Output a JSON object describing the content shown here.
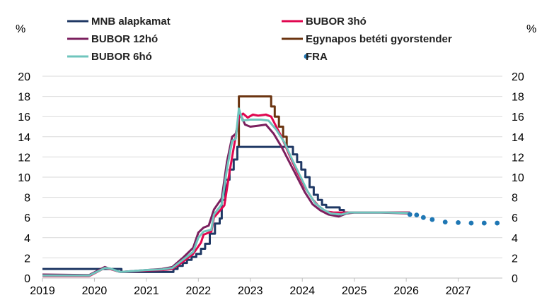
{
  "chart_data": {
    "type": "line",
    "title": "",
    "y_unit_left": "%",
    "y_unit_right": "%",
    "ylim": [
      0,
      20
    ],
    "y_ticks": [
      "0",
      "2",
      "4",
      "6",
      "8",
      "10",
      "12",
      "14",
      "16",
      "18",
      "20"
    ],
    "xlim": [
      2019,
      2027.85
    ],
    "x_ticks": [
      "2019",
      "2020",
      "2021",
      "2022",
      "2023",
      "2024",
      "2025",
      "2026",
      "2027"
    ],
    "grid": "horizontal",
    "legend": [
      {
        "name": "MNB alapkamat",
        "color": "#1f3864",
        "style": "line"
      },
      {
        "name": "BUBOR 3hó",
        "color": "#e0064f",
        "style": "line"
      },
      {
        "name": "BUBOR 12hó",
        "color": "#7b1f5e",
        "style": "line"
      },
      {
        "name": "Egynapos betéti gyorstender",
        "color": "#6b3410",
        "style": "line"
      },
      {
        "name": "BUBOR 6hó",
        "color": "#6fc5bd",
        "style": "line"
      },
      {
        "name": "FRA",
        "color": "#1f77b4",
        "style": "dots"
      }
    ],
    "series": [
      {
        "name": "MNB alapkamat",
        "color": "#1f3864",
        "width": 3,
        "step": true,
        "points": [
          [
            2019,
            0.9
          ],
          [
            2020.5,
            0.9
          ],
          [
            2020.52,
            0.6
          ],
          [
            2021.5,
            0.6
          ],
          [
            2021.52,
            0.9
          ],
          [
            2021.6,
            1.2
          ],
          [
            2021.7,
            1.5
          ],
          [
            2021.78,
            1.8
          ],
          [
            2021.87,
            2.1
          ],
          [
            2021.96,
            2.4
          ],
          [
            2022.05,
            2.9
          ],
          [
            2022.13,
            3.4
          ],
          [
            2022.22,
            4.4
          ],
          [
            2022.32,
            5.4
          ],
          [
            2022.41,
            5.9
          ],
          [
            2022.45,
            7.75
          ],
          [
            2022.52,
            9.75
          ],
          [
            2022.6,
            10.75
          ],
          [
            2022.68,
            11.75
          ],
          [
            2022.75,
            13
          ],
          [
            2023.75,
            13
          ],
          [
            2023.82,
            12.25
          ],
          [
            2023.9,
            11.5
          ],
          [
            2023.98,
            10.75
          ],
          [
            2024.06,
            10.0
          ],
          [
            2024.14,
            9.0
          ],
          [
            2024.22,
            8.25
          ],
          [
            2024.3,
            7.75
          ],
          [
            2024.38,
            7.25
          ],
          [
            2024.46,
            7.0
          ],
          [
            2024.72,
            6.75
          ],
          [
            2024.8,
            6.5
          ],
          [
            2026.07,
            6.5
          ]
        ]
      },
      {
        "name": "Egynapos betéti gyorstender",
        "color": "#6b3410",
        "width": 3,
        "step": true,
        "points": [
          [
            2022.75,
            13
          ],
          [
            2022.78,
            18
          ],
          [
            2023.37,
            18
          ],
          [
            2023.4,
            17
          ],
          [
            2023.47,
            16
          ],
          [
            2023.55,
            15
          ],
          [
            2023.63,
            14
          ],
          [
            2023.7,
            13
          ]
        ]
      },
      {
        "name": "BUBOR 3hó",
        "color": "#e0064f",
        "width": 3,
        "step": false,
        "points": [
          [
            2019,
            0.2
          ],
          [
            2019.9,
            0.2
          ],
          [
            2020.2,
            1.0
          ],
          [
            2020.3,
            0.9
          ],
          [
            2020.5,
            0.6
          ],
          [
            2021.0,
            0.75
          ],
          [
            2021.3,
            0.8
          ],
          [
            2021.5,
            0.9
          ],
          [
            2021.7,
            1.6
          ],
          [
            2021.9,
            2.4
          ],
          [
            2022.05,
            3.5
          ],
          [
            2022.1,
            4.3
          ],
          [
            2022.25,
            4.6
          ],
          [
            2022.3,
            6.0
          ],
          [
            2022.5,
            7.2
          ],
          [
            2022.6,
            10.5
          ],
          [
            2022.7,
            13.5
          ],
          [
            2022.78,
            15.9
          ],
          [
            2022.86,
            16.3
          ],
          [
            2022.95,
            15.9
          ],
          [
            2023.05,
            16.2
          ],
          [
            2023.15,
            16.1
          ],
          [
            2023.3,
            16.2
          ],
          [
            2023.4,
            16.0
          ],
          [
            2023.5,
            15.0
          ],
          [
            2023.6,
            14.0
          ],
          [
            2023.75,
            12.2
          ],
          [
            2023.9,
            10.5
          ],
          [
            2024.05,
            9.0
          ],
          [
            2024.2,
            7.8
          ],
          [
            2024.3,
            7.2
          ],
          [
            2024.45,
            6.6
          ],
          [
            2024.6,
            6.5
          ],
          [
            2024.8,
            6.5
          ],
          [
            2025.0,
            6.5
          ],
          [
            2025.5,
            6.5
          ],
          [
            2026.07,
            6.5
          ]
        ]
      },
      {
        "name": "BUBOR 12hó",
        "color": "#7b1f5e",
        "width": 3,
        "step": false,
        "points": [
          [
            2019,
            0.35
          ],
          [
            2019.9,
            0.3
          ],
          [
            2020.2,
            1.1
          ],
          [
            2020.3,
            0.9
          ],
          [
            2020.5,
            0.6
          ],
          [
            2021.0,
            0.8
          ],
          [
            2021.3,
            0.9
          ],
          [
            2021.5,
            1.1
          ],
          [
            2021.7,
            2.0
          ],
          [
            2021.9,
            3.0
          ],
          [
            2022.0,
            4.5
          ],
          [
            2022.1,
            5.0
          ],
          [
            2022.2,
            5.2
          ],
          [
            2022.3,
            6.8
          ],
          [
            2022.45,
            7.9
          ],
          [
            2022.55,
            11.5
          ],
          [
            2022.65,
            14.0
          ],
          [
            2022.72,
            14.3
          ],
          [
            2022.8,
            16.3
          ],
          [
            2022.9,
            15.2
          ],
          [
            2023.0,
            15.0
          ],
          [
            2023.15,
            15.1
          ],
          [
            2023.3,
            15.2
          ],
          [
            2023.45,
            14.3
          ],
          [
            2023.6,
            13.0
          ],
          [
            2023.75,
            11.5
          ],
          [
            2023.9,
            10.0
          ],
          [
            2024.05,
            8.5
          ],
          [
            2024.2,
            7.3
          ],
          [
            2024.35,
            6.7
          ],
          [
            2024.5,
            6.3
          ],
          [
            2024.7,
            6.1
          ],
          [
            2024.85,
            6.4
          ],
          [
            2025.0,
            6.5
          ],
          [
            2025.5,
            6.5
          ],
          [
            2026.07,
            6.4
          ]
        ]
      },
      {
        "name": "BUBOR 6hó",
        "color": "#6fc5bd",
        "width": 3,
        "step": false,
        "points": [
          [
            2019,
            0.25
          ],
          [
            2019.9,
            0.25
          ],
          [
            2020.2,
            1.0
          ],
          [
            2020.3,
            0.95
          ],
          [
            2020.5,
            0.6
          ],
          [
            2021.0,
            0.8
          ],
          [
            2021.3,
            0.85
          ],
          [
            2021.5,
            1.0
          ],
          [
            2021.7,
            1.8
          ],
          [
            2021.9,
            2.6
          ],
          [
            2022.0,
            4.0
          ],
          [
            2022.1,
            4.6
          ],
          [
            2022.25,
            4.8
          ],
          [
            2022.3,
            6.3
          ],
          [
            2022.45,
            7.3
          ],
          [
            2022.55,
            10.8
          ],
          [
            2022.65,
            13.6
          ],
          [
            2022.72,
            13.8
          ],
          [
            2022.78,
            16.8
          ],
          [
            2022.85,
            15.6
          ],
          [
            2023.0,
            15.7
          ],
          [
            2023.2,
            15.7
          ],
          [
            2023.35,
            15.6
          ],
          [
            2023.5,
            14.7
          ],
          [
            2023.65,
            13.5
          ],
          [
            2023.8,
            11.8
          ],
          [
            2023.95,
            10.2
          ],
          [
            2024.1,
            8.6
          ],
          [
            2024.25,
            7.4
          ],
          [
            2024.4,
            6.8
          ],
          [
            2024.55,
            6.4
          ],
          [
            2024.75,
            6.3
          ],
          [
            2024.9,
            6.5
          ],
          [
            2025.2,
            6.5
          ],
          [
            2025.6,
            6.5
          ],
          [
            2026.07,
            6.45
          ]
        ]
      }
    ],
    "fra": {
      "name": "FRA",
      "color": "#1f77b4",
      "points": [
        [
          2026.07,
          6.3
        ],
        [
          2026.2,
          6.25
        ],
        [
          2026.33,
          6.0
        ],
        [
          2026.5,
          5.8
        ],
        [
          2026.75,
          5.55
        ],
        [
          2027.0,
          5.5
        ],
        [
          2027.25,
          5.45
        ],
        [
          2027.5,
          5.45
        ],
        [
          2027.75,
          5.45
        ]
      ]
    }
  }
}
